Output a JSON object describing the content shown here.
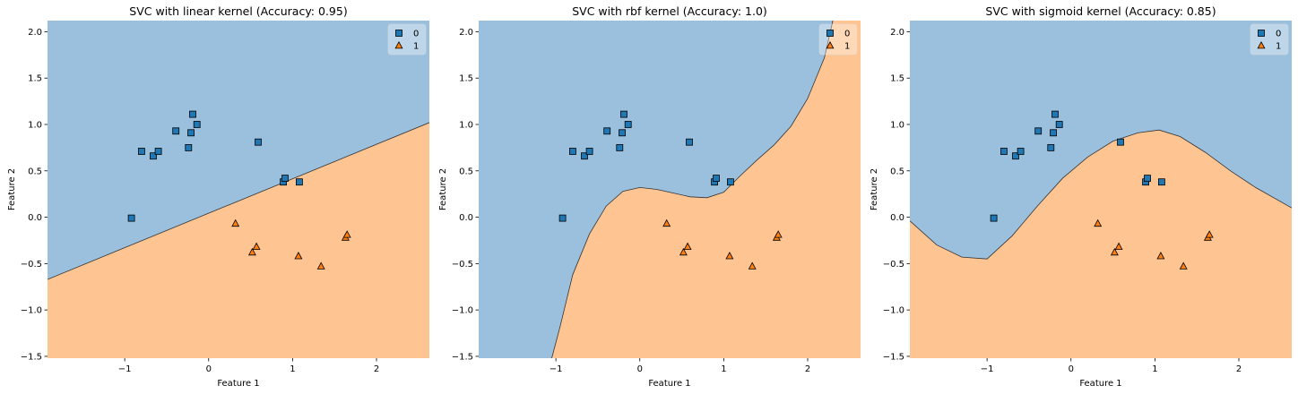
{
  "chart_data": [
    {
      "type": "scatter",
      "kernel": "linear",
      "title": "SVC with linear kernel (Accuracy: 0.95)",
      "xlabel": "Feature 1",
      "ylabel": "Feature 2",
      "xlim": [
        -1.92,
        2.63
      ],
      "ylim": [
        -1.52,
        2.12
      ],
      "xticks": [
        -1,
        0,
        1,
        2
      ],
      "yticks": [
        -1.5,
        -1.0,
        -0.5,
        0.0,
        0.5,
        1.0,
        1.5,
        2.0
      ],
      "decision_boundary": {
        "form": "line",
        "points": [
          [
            -1.92,
            -0.67
          ],
          [
            2.63,
            1.02
          ]
        ]
      },
      "legend": {
        "position": "top-right",
        "entries": [
          "0",
          "1"
        ]
      }
    },
    {
      "type": "scatter",
      "kernel": "rbf",
      "title": "SVC with rbf kernel (Accuracy: 1.0)",
      "xlabel": "Feature 1",
      "ylabel": "Feature 2",
      "xlim": [
        -1.92,
        2.63
      ],
      "ylim": [
        -1.52,
        2.12
      ],
      "xticks": [
        -1,
        0,
        1,
        2
      ],
      "yticks": [
        -1.5,
        -1.0,
        -0.5,
        0.0,
        0.5,
        1.0,
        1.5,
        2.0
      ],
      "decision_boundary": {
        "form": "curve",
        "points": [
          [
            -1.05,
            -1.52
          ],
          [
            -0.95,
            -1.18
          ],
          [
            -0.8,
            -0.62
          ],
          [
            -0.6,
            -0.18
          ],
          [
            -0.4,
            0.12
          ],
          [
            -0.2,
            0.28
          ],
          [
            0.0,
            0.32
          ],
          [
            0.2,
            0.3
          ],
          [
            0.4,
            0.26
          ],
          [
            0.6,
            0.22
          ],
          [
            0.8,
            0.21
          ],
          [
            1.0,
            0.27
          ],
          [
            1.2,
            0.45
          ],
          [
            1.4,
            0.62
          ],
          [
            1.6,
            0.78
          ],
          [
            1.8,
            0.98
          ],
          [
            2.0,
            1.28
          ],
          [
            2.2,
            1.72
          ],
          [
            2.3,
            2.12
          ]
        ]
      },
      "legend": {
        "position": "top-right",
        "entries": [
          "0",
          "1"
        ]
      }
    },
    {
      "type": "scatter",
      "kernel": "sigmoid",
      "title": "SVC with sigmoid kernel (Accuracy: 0.85)",
      "xlabel": "Feature 1",
      "ylabel": "Feature 2",
      "xlim": [
        -1.92,
        2.63
      ],
      "ylim": [
        -1.52,
        2.12
      ],
      "xticks": [
        -1,
        0,
        1,
        2
      ],
      "yticks": [
        -1.5,
        -1.0,
        -0.5,
        0.0,
        0.5,
        1.0,
        1.5,
        2.0
      ],
      "decision_boundary": {
        "form": "curve",
        "points": [
          [
            -1.92,
            -0.04
          ],
          [
            -1.6,
            -0.3
          ],
          [
            -1.3,
            -0.43
          ],
          [
            -1.0,
            -0.45
          ],
          [
            -0.7,
            -0.2
          ],
          [
            -0.4,
            0.12
          ],
          [
            -0.1,
            0.42
          ],
          [
            0.2,
            0.65
          ],
          [
            0.5,
            0.82
          ],
          [
            0.8,
            0.91
          ],
          [
            1.05,
            0.94
          ],
          [
            1.3,
            0.87
          ],
          [
            1.6,
            0.7
          ],
          [
            1.9,
            0.5
          ],
          [
            2.2,
            0.32
          ],
          [
            2.63,
            0.1
          ]
        ]
      },
      "legend": {
        "position": "top-right",
        "entries": [
          "0",
          "1"
        ]
      }
    }
  ],
  "classes": [
    {
      "label": "0",
      "marker": "square",
      "color": "#1f77b4",
      "points": [
        [
          -0.92,
          -0.01
        ],
        [
          -0.8,
          0.71
        ],
        [
          -0.66,
          0.66
        ],
        [
          -0.6,
          0.71
        ],
        [
          -0.39,
          0.93
        ],
        [
          -0.24,
          0.75
        ],
        [
          -0.21,
          0.91
        ],
        [
          -0.19,
          1.11
        ],
        [
          -0.14,
          1.0
        ],
        [
          0.59,
          0.81
        ],
        [
          0.89,
          0.38
        ],
        [
          0.91,
          0.42
        ],
        [
          1.08,
          0.38
        ]
      ]
    },
    {
      "label": "1",
      "marker": "triangle",
      "color": "#ff7f0e",
      "points": [
        [
          0.32,
          -0.07
        ],
        [
          0.52,
          -0.38
        ],
        [
          0.57,
          -0.32
        ],
        [
          1.07,
          -0.42
        ],
        [
          1.34,
          -0.53
        ],
        [
          1.63,
          -0.22
        ],
        [
          1.65,
          -0.19
        ]
      ]
    }
  ],
  "region_colors": {
    "class_0": "#9bc0dd",
    "class_1": "#fec592"
  },
  "edge_color": "#000000"
}
